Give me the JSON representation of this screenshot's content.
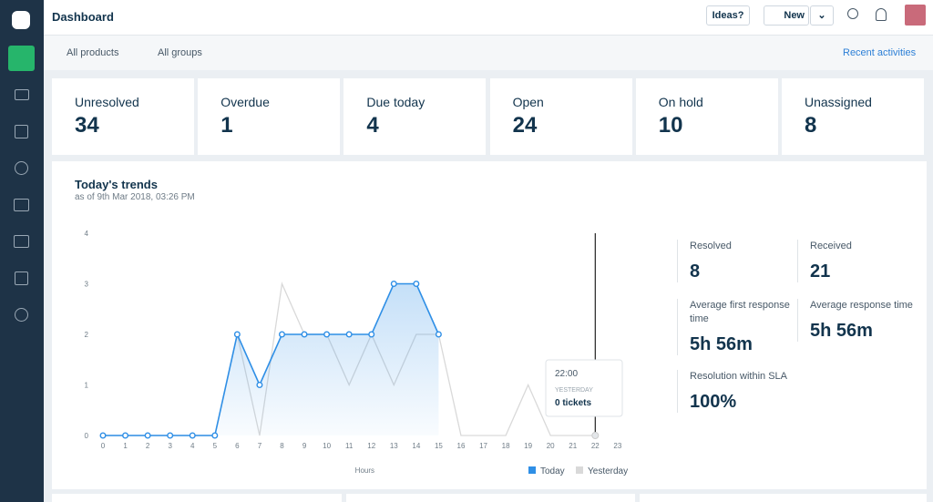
{
  "header": {
    "title": "Dashboard",
    "ideas": "Ideas?",
    "new": "New"
  },
  "filters": {
    "products": "All products",
    "groups": "All groups",
    "recent": "Recent activities"
  },
  "cards": [
    {
      "label": "Unresolved",
      "value": "34"
    },
    {
      "label": "Overdue",
      "value": "1"
    },
    {
      "label": "Due today",
      "value": "4"
    },
    {
      "label": "Open",
      "value": "24"
    },
    {
      "label": "On hold",
      "value": "10"
    },
    {
      "label": "Unassigned",
      "value": "8"
    }
  ],
  "chart_data": {
    "type": "line",
    "title": "Today's trends",
    "subtitle": "as of 9th Mar 2018, 03:26 PM",
    "x_label": "Hours",
    "categories": [
      "0",
      "1",
      "2",
      "3",
      "4",
      "5",
      "6",
      "7",
      "8",
      "9",
      "10",
      "11",
      "12",
      "13",
      "14",
      "15",
      "16",
      "17",
      "18",
      "19",
      "20",
      "21",
      "22",
      "23"
    ],
    "series": [
      {
        "name": "Today",
        "color": "#2f8fe6",
        "values": [
          0,
          0,
          0,
          0,
          0,
          0,
          2,
          1,
          2,
          2,
          2,
          2,
          2,
          3,
          3,
          2,
          null,
          null,
          null,
          null,
          null,
          null,
          null,
          null
        ]
      },
      {
        "name": "Yesterday",
        "color": "#d9d9d9",
        "values": [
          0,
          0,
          0,
          0,
          0,
          0,
          2,
          0,
          3,
          2,
          2,
          1,
          2,
          1,
          2,
          2,
          0,
          0,
          0,
          1,
          0,
          0,
          0,
          null
        ]
      }
    ],
    "ylim": [
      0,
      4
    ],
    "yticks": [
      0,
      1,
      2,
      3,
      4
    ],
    "tooltip": {
      "title": "22:00",
      "series": "YESTERDAY",
      "text": "0 tickets"
    }
  },
  "stats": [
    {
      "label": "Resolved",
      "value": "8"
    },
    {
      "label": "Received",
      "value": "21"
    },
    {
      "label": "Average first response time",
      "value": "5h 56m"
    },
    {
      "label": "Average response time",
      "value": "5h 56m"
    },
    {
      "label": "Resolution within SLA",
      "value": "100%"
    }
  ]
}
